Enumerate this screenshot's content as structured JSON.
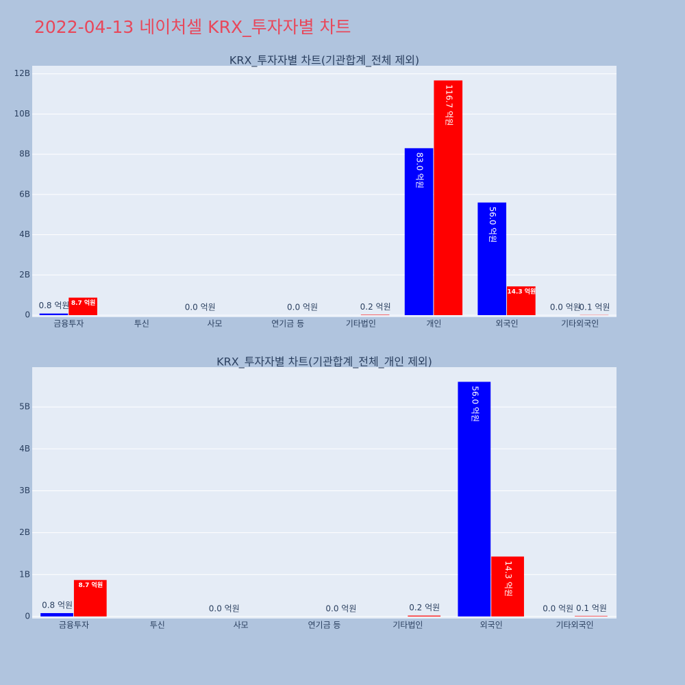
{
  "title": "2022-04-13 네이처셀 KRX_투자자별 차트",
  "chart_data": [
    {
      "type": "bar",
      "title": "KRX_투자자별 차트(기관합계_전체 제외)",
      "categories": [
        "금융투자",
        "투신",
        "사모",
        "연기금 등",
        "기타법인",
        "개인",
        "외국인",
        "기타외국인"
      ],
      "series": [
        {
          "color": "#0000ff",
          "values": [
            80000000,
            null,
            0,
            null,
            null,
            8300000000,
            5600000000,
            0
          ],
          "value_labels": [
            "0.8 억원",
            null,
            "0.0 억원",
            null,
            null,
            "83.0 억원",
            "56.0 억원",
            "0.0 억원"
          ]
        },
        {
          "color": "#ff0000",
          "values": [
            870000000,
            null,
            null,
            0,
            20000000,
            11670000000,
            1430000000,
            10000000
          ],
          "value_labels": [
            "8.7 억원",
            null,
            null,
            "0.0 억원",
            "0.2 억원",
            "116.7 억원",
            "14.3 억원",
            "0.1 억원"
          ]
        }
      ],
      "ylim": [
        -100000000,
        12400000000
      ],
      "yticks": [
        0,
        {
          "value": 2000000000,
          "label": "2B"
        },
        {
          "value": 4000000000,
          "label": "4B"
        },
        {
          "value": 6000000000,
          "label": "6B"
        },
        {
          "value": 8000000000,
          "label": "8B"
        },
        {
          "value": 10000000000,
          "label": "10B"
        },
        {
          "value": 12000000000,
          "label": "12B"
        }
      ],
      "grid": true
    },
    {
      "type": "bar",
      "title": "KRX_투자자별 차트(기관합계_전체_개인 제외)",
      "categories": [
        "금융투자",
        "투신",
        "사모",
        "연기금 등",
        "기타법인",
        "외국인",
        "기타외국인"
      ],
      "series": [
        {
          "color": "#0000ff",
          "values": [
            80000000,
            null,
            0,
            null,
            null,
            5600000000,
            0
          ],
          "value_labels": [
            "0.8 억원",
            null,
            "0.0 억원",
            null,
            null,
            "56.0 억원",
            "0.0 억원"
          ]
        },
        {
          "color": "#ff0000",
          "values": [
            870000000,
            null,
            null,
            0,
            20000000,
            1430000000,
            10000000
          ],
          "value_labels": [
            "8.7 억원",
            null,
            null,
            "0.0 억원",
            "0.2 억원",
            "14.3 억원",
            "0.1 억원"
          ]
        }
      ],
      "ylim": [
        -50000000,
        5950000000
      ],
      "yticks": [
        0,
        {
          "value": 1000000000,
          "label": "1B"
        },
        {
          "value": 2000000000,
          "label": "2B"
        },
        {
          "value": 3000000000,
          "label": "3B"
        },
        {
          "value": 4000000000,
          "label": "4B"
        },
        {
          "value": 5000000000,
          "label": "5B"
        }
      ],
      "grid": true
    }
  ]
}
